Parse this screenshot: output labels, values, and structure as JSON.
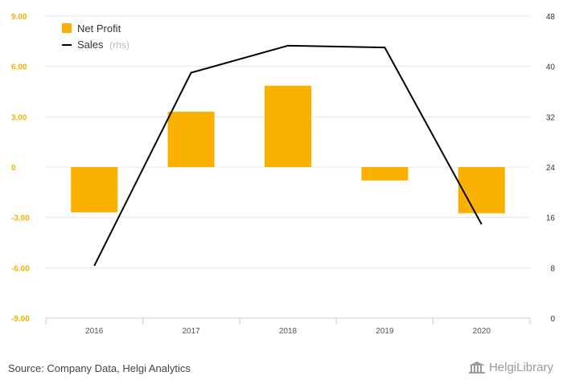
{
  "colors": {
    "bar": "#F9B000",
    "line": "#000000",
    "axis_label": "#F9B000",
    "right_axis_label": "#333333",
    "grid": "#e5e5e5"
  },
  "legend": {
    "items": [
      {
        "label": "Net Profit",
        "suffix": "",
        "symbol": "square"
      },
      {
        "label": "Sales",
        "suffix": "(rhs)",
        "symbol": "line"
      }
    ]
  },
  "chart_data": {
    "type": "bar",
    "categories": [
      "2016",
      "2017",
      "2018",
      "2019",
      "2020"
    ],
    "series": [
      {
        "name": "Net Profit",
        "type": "bar",
        "axis": "left",
        "values": [
          -2.7,
          3.3,
          4.85,
          -0.8,
          -2.75
        ]
      },
      {
        "name": "Sales",
        "type": "line",
        "axis": "right",
        "values": [
          8.3,
          39.0,
          43.3,
          43.0,
          14.9
        ]
      }
    ],
    "y_left": {
      "ylim": [
        -9,
        9
      ],
      "ticks": [
        9,
        6,
        3,
        0,
        -3,
        -6,
        -9
      ],
      "tick_labels": [
        "9.00",
        "6.00",
        "3.00",
        "0",
        "-3.00",
        "-6.00",
        "-9.00"
      ]
    },
    "y_right": {
      "ylim": [
        0,
        48
      ],
      "ticks": [
        48,
        40,
        32,
        24,
        16,
        8,
        0
      ],
      "tick_labels": [
        "48",
        "40",
        "32",
        "24",
        "16",
        "8",
        "0"
      ]
    },
    "grid": true,
    "legend_position": "top-left"
  },
  "footer": {
    "source": "Source: Company Data, Helgi Analytics",
    "logo_text": "HelgiLibrary"
  }
}
